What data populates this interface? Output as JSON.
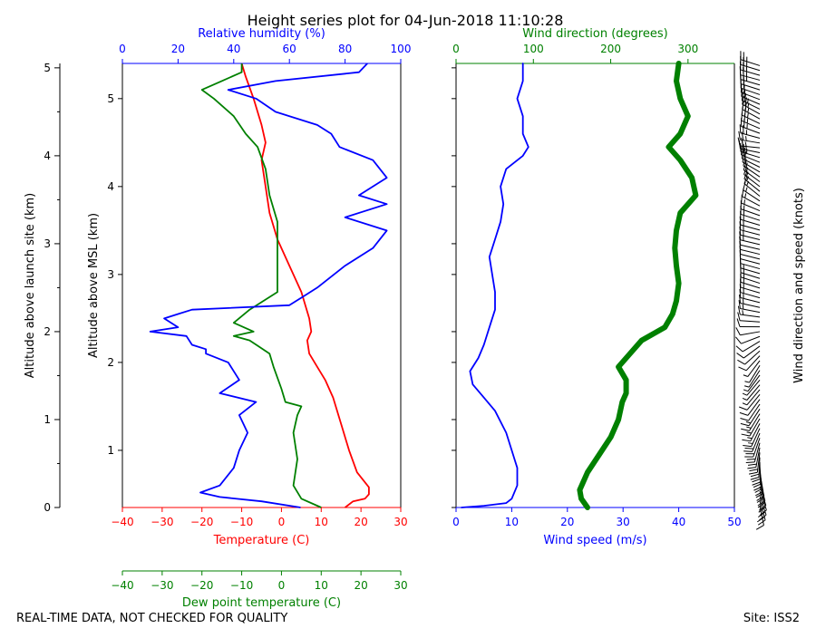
{
  "title": "Height series plot for 04-Jun-2018 11:10:28",
  "footer_left": "REAL-TIME DATA, NOT CHECKED FOR QUALITY",
  "footer_right": "Site: ISS2",
  "colors": {
    "temp": "#ff0000",
    "dew": "#008000",
    "rh": "#0000ff",
    "wspd": "#0000ff",
    "wdir": "#008000",
    "axis": "#000000"
  },
  "chart_data": [
    {
      "type": "line",
      "name": "thermo-panel",
      "ylabel_outer": "Altitude above launch site (km)",
      "ylabel_inner": "Altitude above MSL (km)",
      "ylim_msl_km": [
        0.35,
        5.4
      ],
      "launch_site_offset_km": 0.35,
      "yticks_msl": [
        1,
        2,
        3,
        4,
        5
      ],
      "yticks_launch": [
        0,
        1,
        2,
        3,
        4,
        5
      ],
      "axes": {
        "temperature": {
          "label": "Temperature (C)",
          "range": [
            -40,
            30
          ],
          "ticks": [
            -40,
            -30,
            -20,
            -10,
            0,
            10,
            20,
            30
          ]
        },
        "dewpoint": {
          "label": "Dew point temperature (C)",
          "range": [
            -40,
            30
          ],
          "ticks": [
            -40,
            -30,
            -20,
            -10,
            0,
            10,
            20,
            30
          ]
        },
        "rh": {
          "label": "Relative humidity (%)",
          "range": [
            0,
            100
          ],
          "ticks": [
            0,
            20,
            40,
            60,
            80,
            100
          ]
        }
      },
      "series": [
        {
          "name": "Temperature",
          "axis": "temperature",
          "points": [
            [
              16,
              0.35
            ],
            [
              18,
              0.42
            ],
            [
              21,
              0.45
            ],
            [
              22,
              0.5
            ],
            [
              22,
              0.58
            ],
            [
              19,
              0.75
            ],
            [
              17,
              1.0
            ],
            [
              15,
              1.3
            ],
            [
              13,
              1.6
            ],
            [
              11,
              1.8
            ],
            [
              9,
              1.95
            ],
            [
              7,
              2.1
            ],
            [
              6.5,
              2.25
            ],
            [
              7.5,
              2.35
            ],
            [
              7,
              2.5
            ],
            [
              5,
              2.8
            ],
            [
              2,
              3.1
            ],
            [
              -1,
              3.4
            ],
            [
              -3,
              3.7
            ],
            [
              -4,
              4.0
            ],
            [
              -5,
              4.3
            ],
            [
              -4,
              4.5
            ],
            [
              -5,
              4.7
            ],
            [
              -7,
              5.0
            ],
            [
              -9,
              5.25
            ],
            [
              -10,
              5.4
            ]
          ]
        },
        {
          "name": "Dew point",
          "axis": "dewpoint",
          "points": [
            [
              10,
              0.35
            ],
            [
              5,
              0.45
            ],
            [
              3,
              0.6
            ],
            [
              4,
              0.9
            ],
            [
              3,
              1.2
            ],
            [
              4,
              1.4
            ],
            [
              5,
              1.5
            ],
            [
              1,
              1.55
            ],
            [
              0,
              1.7
            ],
            [
              -2,
              1.95
            ],
            [
              -3,
              2.1
            ],
            [
              -8,
              2.25
            ],
            [
              -12,
              2.3
            ],
            [
              -7,
              2.35
            ],
            [
              -12,
              2.45
            ],
            [
              -8,
              2.6
            ],
            [
              -1,
              2.8
            ],
            [
              -1,
              3.2
            ],
            [
              -1,
              3.6
            ],
            [
              -3,
              3.9
            ],
            [
              -4,
              4.2
            ],
            [
              -6,
              4.45
            ],
            [
              -9,
              4.6
            ],
            [
              -12,
              4.8
            ],
            [
              -17,
              5.0
            ],
            [
              -20,
              5.1
            ],
            [
              -15,
              5.2
            ],
            [
              -10,
              5.3
            ],
            [
              -10,
              5.4
            ]
          ]
        },
        {
          "name": "Relative humidity",
          "axis": "rh",
          "points": [
            [
              64,
              0.35
            ],
            [
              50,
              0.42
            ],
            [
              35,
              0.47
            ],
            [
              28,
              0.52
            ],
            [
              35,
              0.6
            ],
            [
              40,
              0.8
            ],
            [
              42,
              1.0
            ],
            [
              45,
              1.2
            ],
            [
              42,
              1.4
            ],
            [
              48,
              1.55
            ],
            [
              35,
              1.65
            ],
            [
              42,
              1.8
            ],
            [
              38,
              2.0
            ],
            [
              30,
              2.1
            ],
            [
              30,
              2.15
            ],
            [
              25,
              2.2
            ],
            [
              23,
              2.3
            ],
            [
              10,
              2.35
            ],
            [
              20,
              2.4
            ],
            [
              15,
              2.5
            ],
            [
              20,
              2.55
            ],
            [
              25,
              2.6
            ],
            [
              60,
              2.65
            ],
            [
              65,
              2.75
            ],
            [
              70,
              2.85
            ],
            [
              80,
              3.1
            ],
            [
              90,
              3.3
            ],
            [
              95,
              3.5
            ],
            [
              80,
              3.65
            ],
            [
              95,
              3.8
            ],
            [
              85,
              3.9
            ],
            [
              95,
              4.1
            ],
            [
              90,
              4.3
            ],
            [
              78,
              4.45
            ],
            [
              75,
              4.6
            ],
            [
              70,
              4.7
            ],
            [
              55,
              4.85
            ],
            [
              48,
              5.0
            ],
            [
              38,
              5.1
            ],
            [
              55,
              5.2
            ],
            [
              85,
              5.3
            ],
            [
              88,
              5.4
            ]
          ]
        }
      ]
    },
    {
      "type": "line",
      "name": "wind-panel",
      "ylim_msl_km": [
        0.35,
        5.4
      ],
      "axes": {
        "wind_speed": {
          "label": "Wind speed (m/s)",
          "range": [
            0,
            50
          ],
          "ticks": [
            0,
            10,
            20,
            30,
            40,
            50
          ]
        },
        "wind_direction": {
          "label": "Wind direction (degrees)",
          "range": [
            0,
            360
          ],
          "ticks": [
            0,
            100,
            200,
            300
          ]
        }
      },
      "barb_label": "Wind direction and speed (knots)",
      "series": [
        {
          "name": "Wind speed",
          "axis": "wind_speed",
          "points": [
            [
              1,
              0.35
            ],
            [
              5,
              0.37
            ],
            [
              9,
              0.4
            ],
            [
              10,
              0.45
            ],
            [
              11,
              0.6
            ],
            [
              11,
              0.8
            ],
            [
              10,
              1.0
            ],
            [
              9,
              1.2
            ],
            [
              7,
              1.45
            ],
            [
              5,
              1.6
            ],
            [
              3,
              1.75
            ],
            [
              2.5,
              1.9
            ],
            [
              4,
              2.05
            ],
            [
              5,
              2.2
            ],
            [
              6,
              2.4
            ],
            [
              7,
              2.6
            ],
            [
              7,
              2.8
            ],
            [
              6.5,
              3.0
            ],
            [
              6,
              3.2
            ],
            [
              7,
              3.4
            ],
            [
              8,
              3.6
            ],
            [
              8.5,
              3.8
            ],
            [
              8,
              4.0
            ],
            [
              9,
              4.2
            ],
            [
              12,
              4.35
            ],
            [
              13,
              4.45
            ],
            [
              12,
              4.6
            ],
            [
              12,
              4.8
            ],
            [
              11,
              5.0
            ],
            [
              12,
              5.2
            ],
            [
              12,
              5.4
            ]
          ]
        },
        {
          "name": "Wind direction",
          "axis": "wind_direction",
          "bold": true,
          "points": [
            [
              170,
              0.35
            ],
            [
              162,
              0.45
            ],
            [
              160,
              0.55
            ],
            [
              170,
              0.75
            ],
            [
              185,
              0.95
            ],
            [
              200,
              1.15
            ],
            [
              210,
              1.35
            ],
            [
              215,
              1.55
            ],
            [
              220,
              1.65
            ],
            [
              220,
              1.8
            ],
            [
              210,
              1.95
            ],
            [
              225,
              2.1
            ],
            [
              240,
              2.25
            ],
            [
              270,
              2.4
            ],
            [
              280,
              2.55
            ],
            [
              285,
              2.7
            ],
            [
              288,
              2.9
            ],
            [
              285,
              3.1
            ],
            [
              283,
              3.3
            ],
            [
              285,
              3.5
            ],
            [
              290,
              3.7
            ],
            [
              310,
              3.9
            ],
            [
              305,
              4.1
            ],
            [
              290,
              4.3
            ],
            [
              275,
              4.45
            ],
            [
              290,
              4.6
            ],
            [
              300,
              4.8
            ],
            [
              290,
              5.0
            ],
            [
              285,
              5.2
            ],
            [
              288,
              5.4
            ]
          ]
        }
      ]
    }
  ]
}
